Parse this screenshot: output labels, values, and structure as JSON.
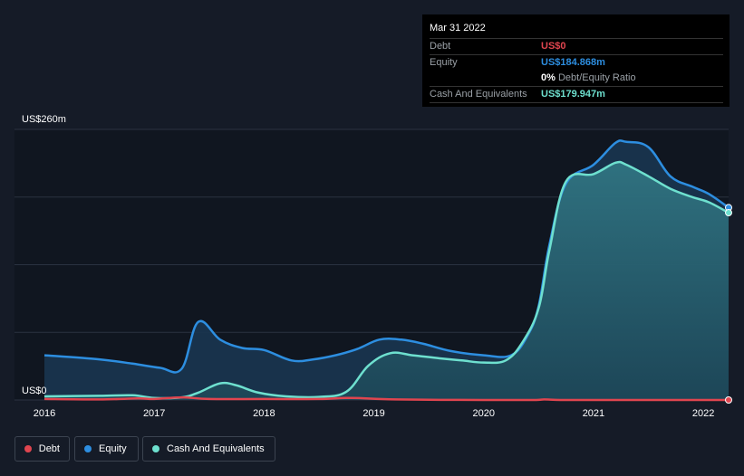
{
  "chart_data": {
    "type": "area",
    "y_unit_prefix": "US$",
    "y_top_label": "US$260m",
    "y_bottom_label": "US$0",
    "ylim": [
      0,
      260
    ],
    "xlim": [
      2016.0,
      2022.23
    ],
    "x_ticks": [
      "2016",
      "2017",
      "2018",
      "2019",
      "2020",
      "2021",
      "2022"
    ],
    "series": [
      {
        "name": "Equity",
        "color": "#2d8ee0",
        "x": [
          2016.0,
          2016.5,
          2016.8,
          2017.05,
          2017.25,
          2017.4,
          2017.6,
          2017.8,
          2018.0,
          2018.25,
          2018.45,
          2018.65,
          2018.85,
          2019.05,
          2019.25,
          2019.45,
          2019.7,
          2020.0,
          2020.25,
          2020.4,
          2020.5,
          2020.6,
          2020.75,
          2021.0,
          2021.2,
          2021.3,
          2021.5,
          2021.7,
          2021.9,
          2022.05,
          2022.23
        ],
        "values": [
          43,
          39,
          35,
          31,
          30,
          75,
          58,
          50,
          48,
          38,
          39,
          43,
          49,
          58,
          58,
          54,
          47,
          43,
          43,
          62,
          90,
          150,
          208,
          226,
          247,
          248,
          243,
          215,
          205,
          198,
          184.868
        ]
      },
      {
        "name": "Cash And Equivalents",
        "color": "#6ee0cf",
        "x": [
          2016.0,
          2016.5,
          2016.8,
          2017.0,
          2017.25,
          2017.4,
          2017.6,
          2017.75,
          2017.95,
          2018.2,
          2018.5,
          2018.75,
          2018.95,
          2019.15,
          2019.35,
          2019.6,
          2019.8,
          2020.0,
          2020.2,
          2020.35,
          2020.5,
          2020.6,
          2020.75,
          2021.0,
          2021.2,
          2021.3,
          2021.5,
          2021.7,
          2021.9,
          2022.05,
          2022.23
        ],
        "values": [
          3.5,
          4,
          4.5,
          2,
          2.5,
          7,
          16,
          14,
          7,
          3.5,
          3,
          8,
          33,
          45,
          43,
          40,
          38,
          36,
          38,
          55,
          88,
          145,
          210,
          217,
          228,
          226,
          215,
          203,
          195,
          190,
          179.947
        ]
      },
      {
        "name": "Debt",
        "color": "#e0454f",
        "x": [
          2016.0,
          2016.5,
          2016.85,
          2017.0,
          2017.25,
          2017.5,
          2018.0,
          2018.5,
          2018.8,
          2019.2,
          2020.0,
          2020.45,
          2020.55,
          2020.7,
          2021.0,
          2022.23
        ],
        "values": [
          1,
          0.5,
          1.5,
          1,
          2.5,
          1,
          1,
          1,
          2,
          0.5,
          0,
          0,
          0.5,
          0,
          0,
          0
        ]
      }
    ]
  },
  "tooltip": {
    "date": "Mar 31 2022",
    "debt_label": "Debt",
    "debt_value": "US$0",
    "equity_label": "Equity",
    "equity_value": "US$184.868m",
    "ratio_value": "0%",
    "ratio_label": "Debt/Equity Ratio",
    "cash_label": "Cash And Equivalents",
    "cash_value": "US$179.947m"
  },
  "legend": {
    "debt": "Debt",
    "equity": "Equity",
    "cash": "Cash And Equivalents"
  },
  "colors": {
    "debt": "#e0454f",
    "equity": "#2d8ee0",
    "cash": "#6ee0cf",
    "background": "#151b27",
    "past_region": "#181f2d"
  }
}
